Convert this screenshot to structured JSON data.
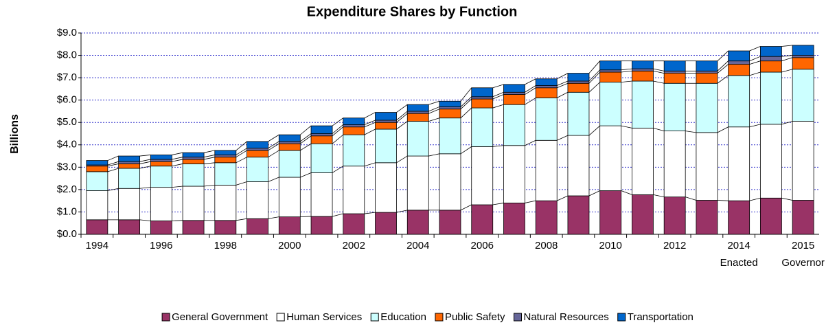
{
  "chart_data": {
    "type": "stacked_bar",
    "title": "Expenditure Shares by Function",
    "y_label": "Billions",
    "categories": [
      "1994",
      null,
      "1996",
      null,
      "1998",
      null,
      "2000",
      null,
      "2002",
      null,
      "2004",
      null,
      "2006",
      null,
      "2008",
      null,
      "2010",
      null,
      "2012",
      null,
      "2014",
      null,
      "2015"
    ],
    "category_sublabels": [
      null,
      null,
      null,
      null,
      null,
      null,
      null,
      null,
      null,
      null,
      null,
      null,
      null,
      null,
      null,
      null,
      null,
      null,
      null,
      null,
      "Enacted",
      null,
      "Governor"
    ],
    "series": [
      {
        "name": "General Government",
        "color": "#993366",
        "values": [
          0.65,
          0.65,
          0.6,
          0.62,
          0.62,
          0.7,
          0.78,
          0.8,
          0.92,
          0.98,
          1.08,
          1.08,
          1.32,
          1.4,
          1.5,
          1.72,
          1.95,
          1.77,
          1.67,
          1.52,
          1.5,
          1.62,
          1.52
        ]
      },
      {
        "name": "Human Services",
        "color": "#ffffff",
        "values": [
          1.3,
          1.4,
          1.5,
          1.53,
          1.58,
          1.65,
          1.77,
          1.95,
          2.13,
          2.22,
          2.42,
          2.52,
          2.6,
          2.57,
          2.7,
          2.7,
          2.9,
          2.98,
          2.95,
          3.03,
          3.3,
          3.3,
          3.53
        ]
      },
      {
        "name": "Education",
        "color": "#ccffff",
        "values": [
          0.85,
          0.9,
          0.95,
          1.0,
          1.0,
          1.1,
          1.2,
          1.3,
          1.4,
          1.5,
          1.55,
          1.6,
          1.73,
          1.83,
          1.9,
          1.93,
          1.95,
          2.1,
          2.13,
          2.2,
          2.3,
          2.33,
          2.33
        ]
      },
      {
        "name": "Public Safety",
        "color": "#ff6600",
        "values": [
          0.25,
          0.2,
          0.2,
          0.2,
          0.25,
          0.3,
          0.3,
          0.35,
          0.35,
          0.3,
          0.35,
          0.4,
          0.4,
          0.45,
          0.45,
          0.4,
          0.45,
          0.45,
          0.45,
          0.45,
          0.5,
          0.5,
          0.52
        ]
      },
      {
        "name": "Natural Resources",
        "color": "#666699",
        "values": [
          0.05,
          0.1,
          0.1,
          0.1,
          0.1,
          0.1,
          0.1,
          0.1,
          0.1,
          0.1,
          0.1,
          0.1,
          0.1,
          0.1,
          0.1,
          0.1,
          0.1,
          0.1,
          0.1,
          0.1,
          0.15,
          0.2,
          0.1
        ]
      },
      {
        "name": "Transportation",
        "color": "#0066cc",
        "values": [
          0.2,
          0.25,
          0.2,
          0.2,
          0.2,
          0.3,
          0.3,
          0.35,
          0.3,
          0.35,
          0.3,
          0.25,
          0.4,
          0.35,
          0.3,
          0.35,
          0.4,
          0.35,
          0.45,
          0.45,
          0.45,
          0.45,
          0.45
        ]
      }
    ],
    "ylim": [
      0,
      9
    ],
    "yticks": [
      {
        "value": 0,
        "label": "$0.0"
      },
      {
        "value": 1,
        "label": "$1.0"
      },
      {
        "value": 2,
        "label": "$2.0"
      },
      {
        "value": 3,
        "label": "$3.0"
      },
      {
        "value": 4,
        "label": "$4.0"
      },
      {
        "value": 5,
        "label": "$5.0"
      },
      {
        "value": 6,
        "label": "$6.0"
      },
      {
        "value": 7,
        "label": "$7.0"
      },
      {
        "value": 8,
        "label": "$8.0"
      },
      {
        "value": 9,
        "label": "$9.0"
      }
    ],
    "grid": true,
    "legend": "bottom"
  }
}
